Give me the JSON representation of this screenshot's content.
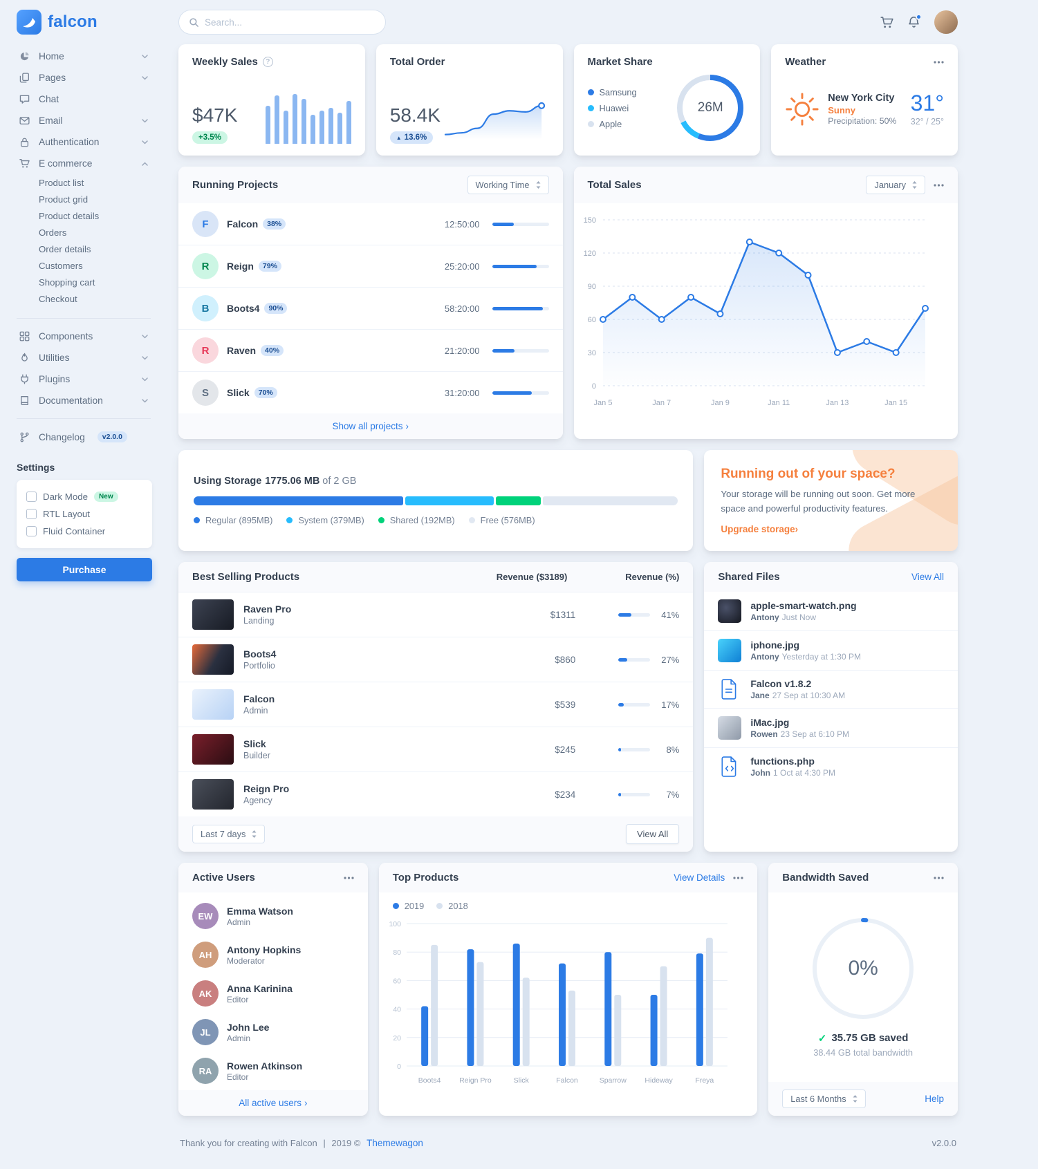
{
  "app": {
    "brand": "falcon",
    "search_placeholder": "Search...",
    "footer": {
      "thanks": "Thank you for creating with Falcon",
      "divider": "|",
      "year": "2019 ©",
      "brand_link": "Themewagon",
      "version": "v2.0.0"
    }
  },
  "icons": {
    "help_glyph": "?",
    "caret_glyph": "›",
    "up_glyph": "▲",
    "check_glyph": "✓"
  },
  "sidebar": {
    "items": [
      {
        "label": "Home"
      },
      {
        "label": "Pages"
      },
      {
        "label": "Chat"
      },
      {
        "label": "Email"
      },
      {
        "label": "Authentication"
      },
      {
        "label": "E commerce"
      }
    ],
    "ecommerce_children": [
      {
        "label": "Product list"
      },
      {
        "label": "Product grid"
      },
      {
        "label": "Product details"
      },
      {
        "label": "Orders"
      },
      {
        "label": "Order details"
      },
      {
        "label": "Customers"
      },
      {
        "label": "Shopping cart"
      },
      {
        "label": "Checkout"
      }
    ],
    "secondary": [
      {
        "label": "Components"
      },
      {
        "label": "Utilities"
      },
      {
        "label": "Plugins"
      },
      {
        "label": "Documentation"
      }
    ],
    "changelog": {
      "label": "Changelog",
      "badge": "v2.0.0"
    },
    "settings": {
      "title": "Settings",
      "options": [
        {
          "label": "Dark Mode",
          "badge": "New"
        },
        {
          "label": "RTL Layout"
        },
        {
          "label": "Fluid Container"
        }
      ],
      "purchase_label": "Purchase"
    }
  },
  "stats": {
    "weekly_sales": {
      "title": "Weekly Sales",
      "value": "$47K",
      "badge": "+3.5%"
    },
    "total_order": {
      "title": "Total Order",
      "value": "58.4K",
      "badge": "13.6%"
    },
    "market_share": {
      "title": "Market Share",
      "center_value": "26M",
      "legend": [
        {
          "label": "Samsung",
          "color": "#2c7be5"
        },
        {
          "label": "Huawei",
          "color": "#27bcfd"
        },
        {
          "label": "Apple",
          "color": "#d8e2ef"
        }
      ]
    },
    "weather": {
      "title": "Weather",
      "city": "New York City",
      "condition": "Sunny",
      "precipitation": "Precipitation: 50%",
      "temperature": "31°",
      "high_low": "32° / 25°"
    }
  },
  "running_projects": {
    "title": "Running Projects",
    "select_value": "Working Time",
    "projects": [
      {
        "initial": "F",
        "name": "Falcon",
        "percent": "38%",
        "progress": 38,
        "time": "12:50:00",
        "bg": "#d9e5f7",
        "fg": "#2c7be5"
      },
      {
        "initial": "R",
        "name": "Reign",
        "percent": "79%",
        "progress": 79,
        "time": "25:20:00",
        "bg": "#ccf6e4",
        "fg": "#00864e"
      },
      {
        "initial": "B",
        "name": "Boots4",
        "percent": "90%",
        "progress": 90,
        "time": "58:20:00",
        "bg": "#d0f0fd",
        "fg": "#1978a2"
      },
      {
        "initial": "R",
        "name": "Raven",
        "percent": "40%",
        "progress": 40,
        "time": "21:20:00",
        "bg": "#fad7dd",
        "fg": "#e63757"
      },
      {
        "initial": "S",
        "name": "Slick",
        "percent": "70%",
        "progress": 70,
        "time": "31:20:00",
        "bg": "#e3e6ea",
        "fg": "#5e6e82"
      }
    ],
    "footer_link": "Show all projects"
  },
  "total_sales": {
    "title": "Total Sales",
    "select_value": "January"
  },
  "storage": {
    "label": "Using Storage",
    "used": "1775.06 MB",
    "of_total": "of 2 GB",
    "total_mb": 2042,
    "segments": [
      {
        "label": "Regular (895MB)",
        "mb": 895,
        "color": "#2c7be5"
      },
      {
        "label": "System (379MB)",
        "mb": 379,
        "color": "#27bcfd"
      },
      {
        "label": "Shared (192MB)",
        "mb": 192,
        "color": "#00d27a"
      },
      {
        "label": "Free (576MB)",
        "mb": 576,
        "color": "#e1e8f2"
      }
    ]
  },
  "space_warning": {
    "title": "Running out of your space?",
    "body": "Your storage will be running out soon. Get more space and powerful productivity features.",
    "link_label": "Upgrade storage"
  },
  "best_selling": {
    "title": "Best Selling Products",
    "revenue_header": "Revenue ($3189)",
    "percent_header": "Revenue (%)",
    "products": [
      {
        "name": "Raven Pro",
        "type": "Landing",
        "revenue": "$1311",
        "percent": "41%",
        "progress": 41
      },
      {
        "name": "Boots4",
        "type": "Portfolio",
        "revenue": "$860",
        "percent": "27%",
        "progress": 27
      },
      {
        "name": "Falcon",
        "type": "Admin",
        "revenue": "$539",
        "percent": "17%",
        "progress": 17
      },
      {
        "name": "Slick",
        "type": "Builder",
        "revenue": "$245",
        "percent": "8%",
        "progress": 8
      },
      {
        "name": "Reign Pro",
        "type": "Agency",
        "revenue": "$234",
        "percent": "7%",
        "progress": 7
      }
    ],
    "select_value": "Last 7 days",
    "view_all_label": "View All"
  },
  "shared_files": {
    "title": "Shared Files",
    "view_all_label": "View All",
    "files": [
      {
        "name": "apple-smart-watch.png",
        "user": "Antony",
        "time": "Just Now"
      },
      {
        "name": "iphone.jpg",
        "user": "Antony",
        "time": "Yesterday at 1:30 PM"
      },
      {
        "name": "Falcon v1.8.2",
        "user": "Jane",
        "time": "27 Sep at 10:30 AM"
      },
      {
        "name": "iMac.jpg",
        "user": "Rowen",
        "time": "23 Sep at 6:10 PM"
      },
      {
        "name": "functions.php",
        "user": "John",
        "time": "1 Oct at 4:30 PM"
      }
    ]
  },
  "active_users": {
    "title": "Active Users",
    "users": [
      {
        "name": "Emma Watson",
        "role": "Admin",
        "initials": "EW",
        "status_color": "#00d27a",
        "avatar_bg": "#a78bba"
      },
      {
        "name": "Antony Hopkins",
        "role": "Moderator",
        "initials": "AH",
        "status_color": "#00d27a",
        "avatar_bg": "#cf9d7c"
      },
      {
        "name": "Anna Karinina",
        "role": "Editor",
        "initials": "AK",
        "status_color": "#00d27a",
        "avatar_bg": "#c97f7f"
      },
      {
        "name": "John Lee",
        "role": "Admin",
        "initials": "JL",
        "status_color": "#d8e2ef",
        "avatar_bg": "#7f95b5"
      },
      {
        "name": "Rowen Atkinson",
        "role": "Editor",
        "initials": "RA",
        "status_color": "#d8e2ef",
        "avatar_bg": "#8fa3ad"
      }
    ],
    "footer_link": "All active users"
  },
  "top_products": {
    "title": "Top Products",
    "view_details_label": "View Details",
    "legend": [
      {
        "label": "2019",
        "color": "#2c7be5"
      },
      {
        "label": "2018",
        "color": "#d8e2ef"
      }
    ]
  },
  "bandwidth": {
    "title": "Bandwidth Saved",
    "percent_label": "0%",
    "saved_label": "35.75 GB saved",
    "total_label": "38.44 GB total bandwidth",
    "select_value": "Last 6 Months",
    "help_label": "Help"
  },
  "chart_data": [
    {
      "id": "weekly_sales_bars",
      "type": "bar",
      "values": [
        55,
        70,
        48,
        72,
        65,
        42,
        48,
        52,
        45,
        62
      ],
      "color": "rgba(44,123,229,0.55)"
    },
    {
      "id": "total_order_spark",
      "type": "line",
      "values": [
        18,
        24,
        40,
        90,
        102,
        98,
        120
      ],
      "color": "#2c7be5"
    },
    {
      "id": "market_share_donut",
      "type": "pie",
      "labels": [
        "Samsung",
        "Huawei",
        "Apple"
      ],
      "values": [
        14.6,
        2.9,
        8.5
      ],
      "unit": "M",
      "colors": [
        "#2c7be5",
        "#27bcfd",
        "#d8e2ef"
      ],
      "center": "26M"
    },
    {
      "id": "total_sales_line",
      "type": "line",
      "title": "Total Sales",
      "x_labels": [
        "Jan 5",
        "Jan 6",
        "Jan 7",
        "Jan 8",
        "Jan 9",
        "Jan 10",
        "Jan 11",
        "Jan 12",
        "Jan 13",
        "Jan 14",
        "Jan 15",
        "Jan 16"
      ],
      "tick_every": 2,
      "values": [
        60,
        80,
        60,
        80,
        65,
        130,
        120,
        100,
        30,
        40,
        30,
        70
      ],
      "ylim": [
        0,
        150
      ],
      "yticks": [
        0,
        30,
        60,
        90,
        120,
        150
      ],
      "color": "#2c7be5",
      "grid": "dashed"
    },
    {
      "id": "top_products_bars",
      "type": "bar",
      "categories": [
        "Boots4",
        "Reign Pro",
        "Slick",
        "Falcon",
        "Sparrow",
        "Hideway",
        "Freya"
      ],
      "series": [
        {
          "name": "2019",
          "color": "#2c7be5",
          "values": [
            42,
            82,
            86,
            72,
            80,
            50,
            79
          ]
        },
        {
          "name": "2018",
          "color": "#d8e2ef",
          "values": [
            85,
            73,
            62,
            53,
            50,
            70,
            90
          ]
        }
      ],
      "ylim": [
        0,
        100
      ],
      "yticks": [
        0,
        20,
        40,
        60,
        80,
        100
      ]
    },
    {
      "id": "bandwidth_gauge",
      "type": "gauge",
      "percent": 0,
      "label": "0%",
      "color": "#2c7be5",
      "track": "#eaf0f7"
    }
  ]
}
